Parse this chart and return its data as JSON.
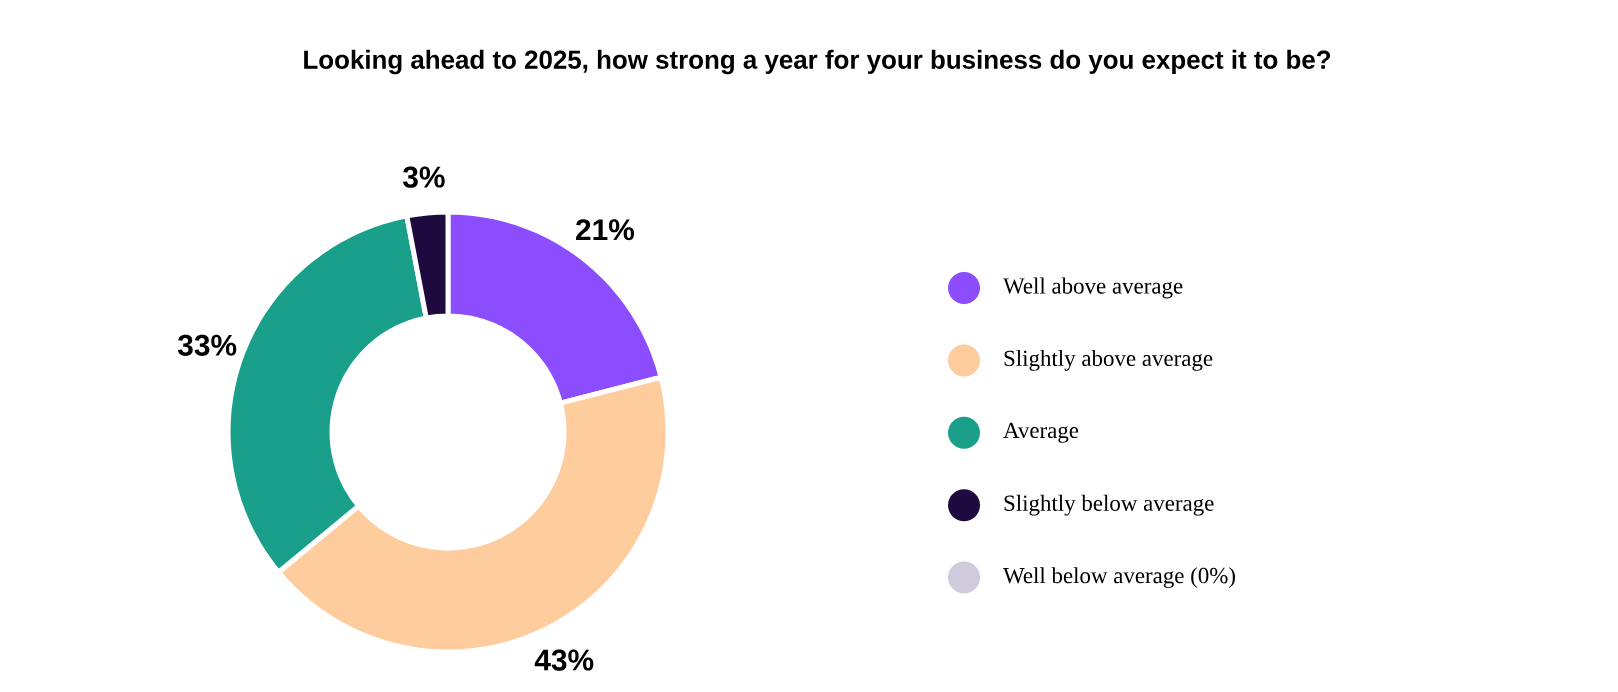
{
  "chart_data": {
    "type": "donut",
    "title": "Looking ahead to 2025, how strong a year for your business do you expect it to be?",
    "categories": [
      "Well above average",
      "Slightly above average",
      "Average",
      "Slightly below average",
      "Well below average (0%)"
    ],
    "values": [
      21,
      43,
      33,
      3,
      0
    ],
    "colors": [
      "#8c4dff",
      "#ffcc9e",
      "#1aa08a",
      "#1f0a40",
      "#cfcbdc"
    ],
    "value_labels": [
      "21%",
      "43%",
      "33%",
      "3%",
      null
    ],
    "legend": "right"
  }
}
